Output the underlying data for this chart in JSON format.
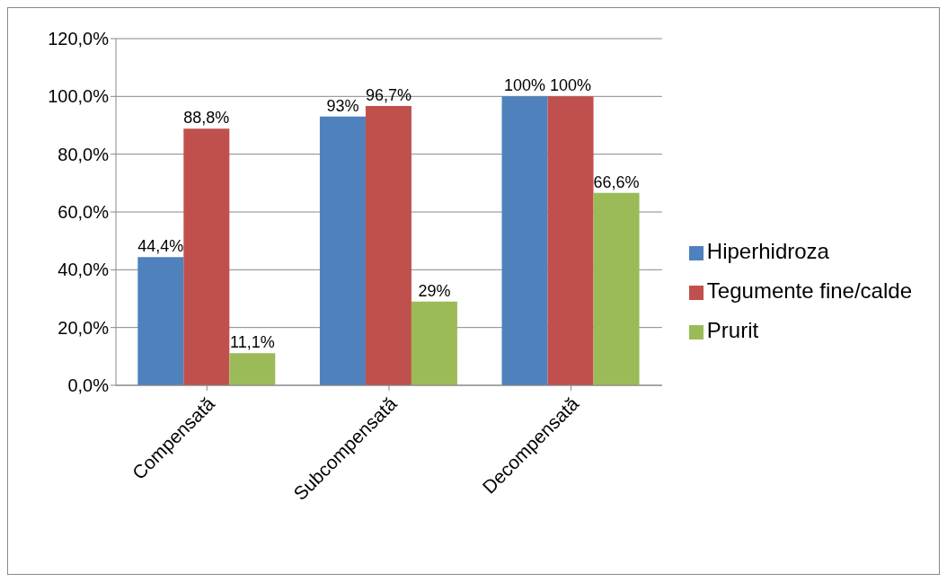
{
  "chart_data": {
    "type": "bar",
    "categories": [
      "Compensată",
      "Subcompensată",
      "Decompensată"
    ],
    "series": [
      {
        "name": "Hiperhidroza",
        "color": "#4f81bd",
        "values": [
          44.4,
          93,
          100
        ],
        "value_labels": [
          "44,4%",
          "93%",
          "100%"
        ]
      },
      {
        "name": "Tegumente fine/calde",
        "color": "#c0504d",
        "values": [
          88.8,
          96.7,
          100
        ],
        "value_labels": [
          "88,8%",
          "96,7%",
          "100%"
        ]
      },
      {
        "name": "Prurit",
        "color": "#9bbb59",
        "values": [
          11.1,
          29,
          66.6
        ],
        "value_labels": [
          "11,1%",
          "29%",
          "66,6%"
        ]
      }
    ],
    "ylim": [
      0,
      120
    ],
    "yticks": [
      {
        "value": 0,
        "label": "0,0%"
      },
      {
        "value": 20,
        "label": "20,0%"
      },
      {
        "value": 40,
        "label": "40,0%"
      },
      {
        "value": 60,
        "label": "60,0%"
      },
      {
        "value": 80,
        "label": "80,0%"
      },
      {
        "value": 100,
        "label": "100,0%"
      },
      {
        "value": 120,
        "label": "120,0%"
      }
    ],
    "grid": "y",
    "legend": "right"
  }
}
